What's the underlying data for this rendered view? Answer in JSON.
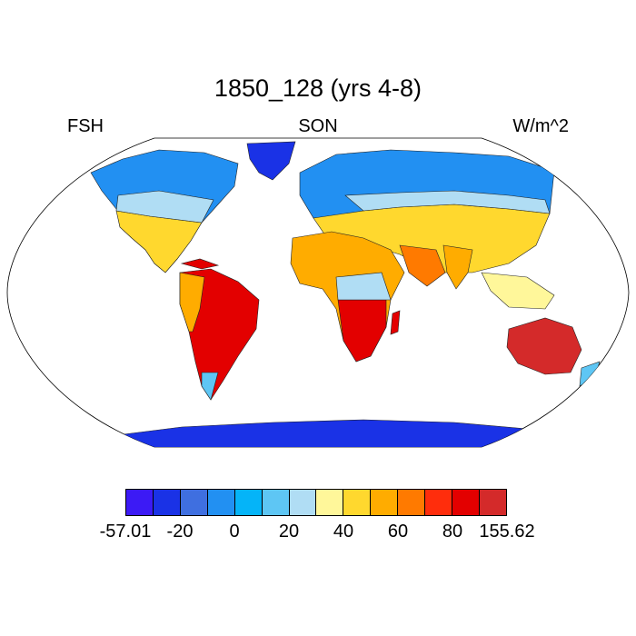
{
  "header": {
    "title": "1850_128 (yrs 4-8)",
    "left_label": "FSH",
    "center_label": "SON",
    "right_label": "W/m^2"
  },
  "legend": {
    "colors": [
      "#3c1af5",
      "#1a32e6",
      "#3f6fe0",
      "#2290f2",
      "#05b4f8",
      "#5ec6f4",
      "#b0ddf4",
      "#fff79a",
      "#ffd82e",
      "#ffac00",
      "#ff7a00",
      "#ff2d0c",
      "#e30000",
      "#d42a2a"
    ],
    "tick_labels": [
      "-57.01",
      "-20",
      "0",
      "20",
      "40",
      "60",
      "80",
      "155.62"
    ],
    "tick_positions": [
      0,
      2,
      4,
      6,
      8,
      10,
      12,
      14
    ]
  }
}
